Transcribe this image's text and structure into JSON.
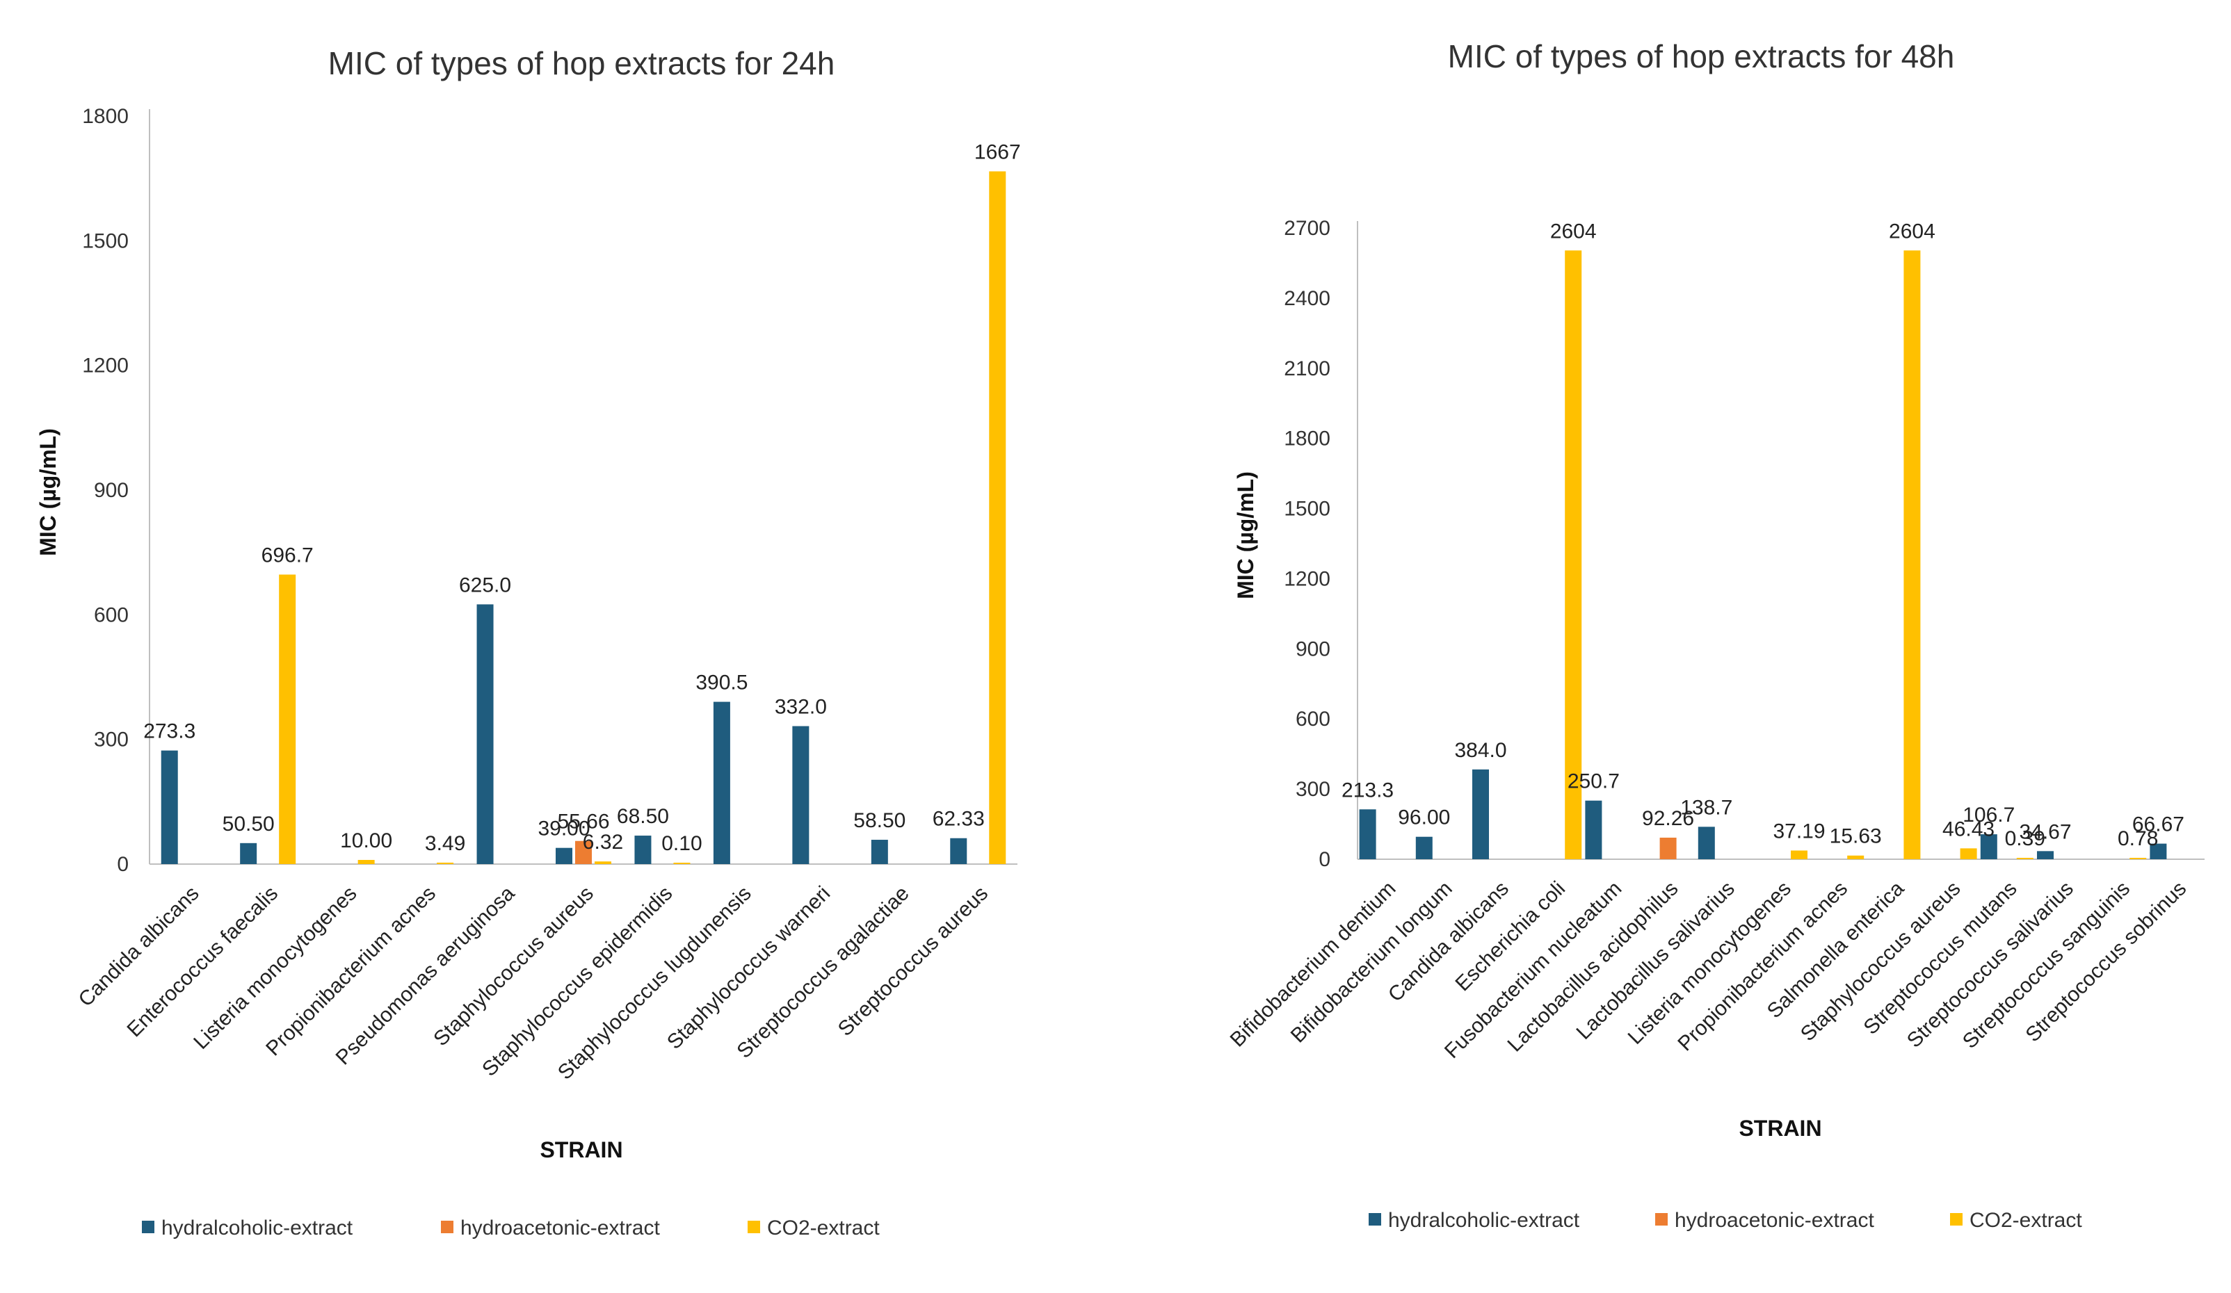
{
  "colors": {
    "hydralcoholic": "#1f5c7e",
    "hydroacetonic": "#ed7d31",
    "co2": "#ffc000",
    "axis": "#bfbfbf"
  },
  "chart_data": [
    {
      "type": "bar",
      "title": "MIC of  types of hop extracts for 24h",
      "xlabel": "STRAIN",
      "ylabel": "MIC  (µg/mL)",
      "ylim": [
        0,
        1800
      ],
      "yticks": [
        "0",
        "300",
        "600",
        "900",
        "1200",
        "1500",
        "1800"
      ],
      "yticks_values": [
        0,
        300,
        600,
        900,
        1200,
        1500,
        1800
      ],
      "legend_position": "bottom",
      "categories": [
        "Candida albicans",
        "Enterococcus faecalis",
        "Listeria monocytogenes",
        "Propionibacterium acnes",
        "Pseudomonas aeruginosa",
        "Staphylococcus aureus",
        "Staphylococcus epidermidis",
        "Staphylococcus lugdunensis",
        "Staphylococcus warneri",
        "Streptococcus agalactiae",
        "Streptococcus aureus"
      ],
      "series": [
        {
          "name": "hydralcoholic-extract",
          "values": [
            273.3,
            50.5,
            null,
            null,
            625.0,
            39.0,
            68.5,
            390.5,
            332.0,
            58.5,
            62.33
          ],
          "labels": [
            "273.3",
            "50.50",
            null,
            null,
            "625.0",
            "39.00",
            "68.50",
            "390.5",
            "332.0",
            "58.50",
            "62.33"
          ]
        },
        {
          "name": "hydroacetonic-extract",
          "values": [
            null,
            null,
            null,
            null,
            null,
            55.66,
            null,
            null,
            null,
            null,
            null
          ],
          "labels": [
            null,
            null,
            null,
            null,
            null,
            "55.66",
            null,
            null,
            null,
            null,
            null
          ]
        },
        {
          "name": "CO2-extract",
          "values": [
            null,
            696.7,
            10.0,
            3.49,
            null,
            6.32,
            0.1,
            null,
            null,
            null,
            1667
          ],
          "labels": [
            null,
            "696.7",
            "10.00",
            "3.49",
            null,
            "6.32",
            "0.10",
            null,
            null,
            null,
            "1667"
          ]
        }
      ]
    },
    {
      "type": "bar",
      "title": "MIC of  types of hop extracts for 48h",
      "xlabel": "STRAIN",
      "ylabel": "MIC  (µg/mL)",
      "ylim": [
        0,
        2700
      ],
      "yticks": [
        "0",
        "300",
        "600",
        "900",
        "1200",
        "1500",
        "1800",
        "2100",
        "2400",
        "2700"
      ],
      "yticks_values": [
        0,
        300,
        600,
        900,
        1200,
        1500,
        1800,
        2100,
        2400,
        2700
      ],
      "legend_position": "bottom",
      "categories": [
        "Bifidobacterium dentium",
        "Bifidobacterium longum",
        "Candida albicans",
        "Escherichia coli",
        "Fusobacterium nucleatum",
        "Lactobacillus acidophilus",
        "Lactobacillus salivarius",
        "Listeria monocytogenes",
        "Propionibacterium acnes",
        "Salmonella enterica",
        "Staphylococcus aureus",
        "Streptococcus mutans",
        "Streptococcus salivarius",
        "Streptococcus sanguinis",
        "Streptococcus sobrinus"
      ],
      "series": [
        {
          "name": "hydralcoholic-extract",
          "values": [
            213.3,
            96.0,
            384.0,
            null,
            250.7,
            null,
            138.7,
            null,
            null,
            null,
            null,
            106.7,
            34.67,
            null,
            66.67
          ],
          "labels": [
            "213.3",
            "96.00",
            "384.0",
            null,
            "250.7",
            null,
            "138.7",
            null,
            null,
            null,
            null,
            "106.7",
            "34.67",
            null,
            "66.67"
          ]
        },
        {
          "name": "hydroacetonic-extract",
          "values": [
            null,
            null,
            null,
            null,
            null,
            92.26,
            null,
            null,
            null,
            null,
            null,
            null,
            null,
            null,
            null
          ],
          "labels": [
            null,
            null,
            null,
            null,
            null,
            "92.26",
            null,
            null,
            null,
            null,
            null,
            null,
            null,
            null,
            null
          ]
        },
        {
          "name": "CO2-extract",
          "values": [
            null,
            null,
            null,
            2604,
            null,
            null,
            null,
            37.19,
            15.63,
            2604,
            46.43,
            0.39,
            null,
            0.78,
            null
          ],
          "labels": [
            null,
            null,
            null,
            "2604",
            null,
            null,
            null,
            "37.19",
            "15.63",
            "2604",
            "46.43",
            "0.39",
            null,
            "0.78",
            null
          ]
        }
      ]
    }
  ]
}
